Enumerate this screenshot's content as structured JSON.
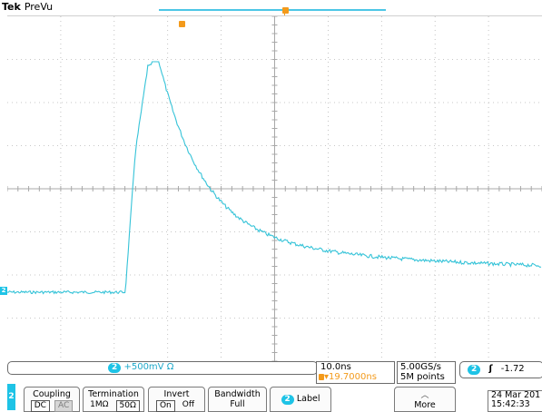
{
  "brand": "Tek",
  "mode": "PreVu",
  "channel": {
    "number": "2",
    "scale": "500mV",
    "ohm": "Ω"
  },
  "timebase": {
    "scale": "10.0ns",
    "position": "▾19.7000ns",
    "sample_rate": "5.00GS/s",
    "record_length": "5M points"
  },
  "trigger": {
    "source": "2",
    "slope": "ʃ",
    "level": "-1.72"
  },
  "menu": {
    "coupling": {
      "title": "Coupling",
      "options": [
        "DC",
        "AC"
      ],
      "selected": "DC"
    },
    "termination": {
      "title": "Termination",
      "options": [
        "1MΩ",
        "50Ω"
      ],
      "selected": "50Ω"
    },
    "invert": {
      "title": "Invert",
      "options": [
        "On",
        "Off"
      ],
      "selected": "On"
    },
    "bandwidth": {
      "title": "Bandwidth",
      "value": "Full"
    },
    "label": {
      "title": "Label"
    },
    "more": {
      "title": "More",
      "glyph": "︿"
    }
  },
  "datetime": {
    "date": "24 Mar 201",
    "time": "15:42:33"
  },
  "colors": {
    "trace": "#35c3d8",
    "accent_orange": "#f39a1b",
    "channel_cyan": "#1ec3e6"
  },
  "icons": {
    "trigger_marker": "trigger-position-marker",
    "ground_marker": "channel-ground-marker"
  }
}
